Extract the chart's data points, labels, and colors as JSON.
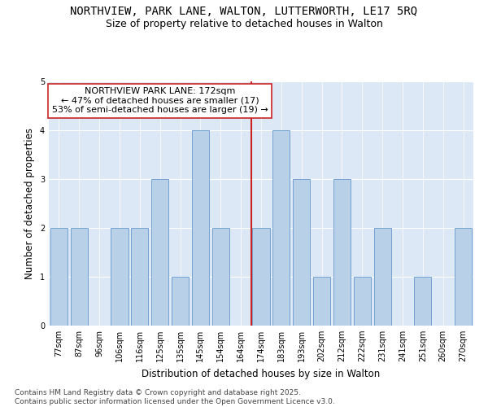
{
  "title": "NORTHVIEW, PARK LANE, WALTON, LUTTERWORTH, LE17 5RQ",
  "subtitle": "Size of property relative to detached houses in Walton",
  "xlabel": "Distribution of detached houses by size in Walton",
  "ylabel": "Number of detached properties",
  "categories": [
    "77sqm",
    "87sqm",
    "96sqm",
    "106sqm",
    "116sqm",
    "125sqm",
    "135sqm",
    "145sqm",
    "154sqm",
    "164sqm",
    "174sqm",
    "183sqm",
    "193sqm",
    "202sqm",
    "212sqm",
    "222sqm",
    "231sqm",
    "241sqm",
    "251sqm",
    "260sqm",
    "270sqm"
  ],
  "values": [
    2,
    2,
    0,
    2,
    2,
    3,
    1,
    4,
    2,
    0,
    2,
    4,
    3,
    1,
    3,
    1,
    2,
    0,
    1,
    0,
    2
  ],
  "bar_color": "#b8d0e8",
  "bar_edge_color": "#6699cc",
  "ref_line_color": "#cc2222",
  "annotation_text": "NORTHVIEW PARK LANE: 172sqm\n← 47% of detached houses are smaller (17)\n53% of semi-detached houses are larger (19) →",
  "annotation_box_color": "#ffffff",
  "annotation_box_edge_color": "#cc2222",
  "ylim": [
    0,
    5
  ],
  "yticks": [
    0,
    1,
    2,
    3,
    4,
    5
  ],
  "bg_color": "#dce8f5",
  "footer_text": "Contains HM Land Registry data © Crown copyright and database right 2025.\nContains public sector information licensed under the Open Government Licence v3.0.",
  "title_fontsize": 10,
  "subtitle_fontsize": 9,
  "xlabel_fontsize": 8.5,
  "ylabel_fontsize": 8.5,
  "tick_fontsize": 7,
  "annotation_fontsize": 8,
  "footer_fontsize": 6.5
}
